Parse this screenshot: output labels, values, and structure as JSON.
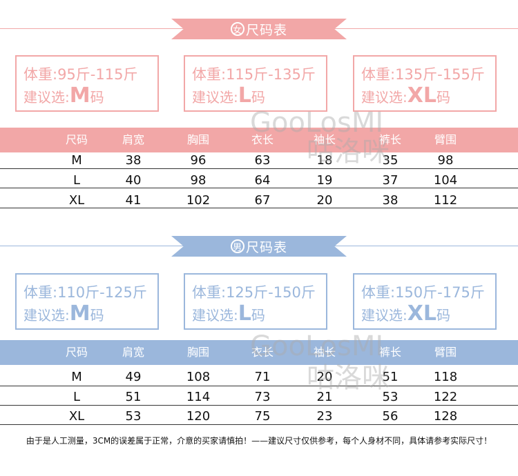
{
  "colors": {
    "female_accent": "#f2a7a7",
    "male_accent": "#9bb7dc"
  },
  "columns": [
    "尺码",
    "肩宽",
    "胸围",
    "衣长",
    "袖长",
    "裤长",
    "臂围"
  ],
  "female": {
    "badge": "女",
    "title": "尺码表",
    "boxes": [
      {
        "weight": "体重:95斤-115斤",
        "suggest_prefix": "建议选:",
        "size": "M",
        "suffix": "码"
      },
      {
        "weight": "体重:115斤-135斤",
        "suggest_prefix": "建议选:",
        "size": "L",
        "suffix": "码"
      },
      {
        "weight": "体重:135斤-155斤",
        "suggest_prefix": "建议选:",
        "size": "XL",
        "suffix": "码"
      }
    ],
    "rows": [
      [
        "M",
        "38",
        "96",
        "63",
        "18",
        "35",
        "98"
      ],
      [
        "L",
        "40",
        "98",
        "64",
        "19",
        "37",
        "104"
      ],
      [
        "XL",
        "41",
        "102",
        "67",
        "20",
        "38",
        "112"
      ]
    ]
  },
  "male": {
    "badge": "男",
    "title": "尺码表",
    "boxes": [
      {
        "weight": "体重:110斤-125斤",
        "suggest_prefix": "建议选:",
        "size": "M",
        "suffix": "码"
      },
      {
        "weight": "体重:125斤-150斤",
        "suggest_prefix": "建议选:",
        "size": "L",
        "suffix": "码"
      },
      {
        "weight": "体重:150斤-175斤",
        "suggest_prefix": "建议选:",
        "size": "XL",
        "suffix": "码"
      }
    ],
    "rows": [
      [
        "M",
        "49",
        "108",
        "71",
        "20",
        "51",
        "118"
      ],
      [
        "L",
        "51",
        "114",
        "73",
        "21",
        "53",
        "122"
      ],
      [
        "XL",
        "53",
        "120",
        "75",
        "23",
        "56",
        "128"
      ]
    ]
  },
  "watermark": {
    "latin": "GooLosMI",
    "chinese": "咕洛咪"
  },
  "footer_note": "由于是人工测量，3CM的误差属于正常，介意的买家请慎拍！——建议尺寸仅供参考，每个人身材不同，具体请参考实际尺寸！"
}
